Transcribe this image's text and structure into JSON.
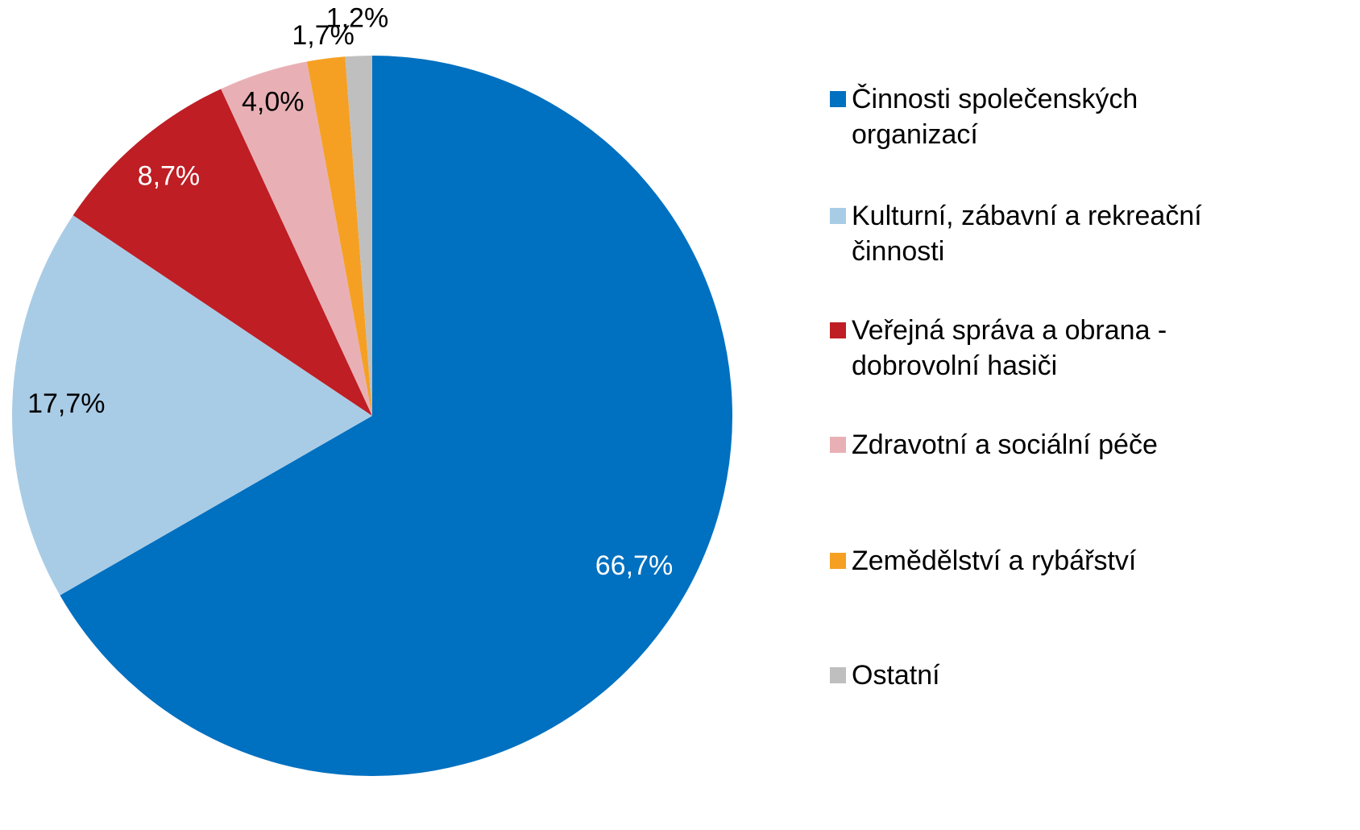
{
  "chart_data": {
    "type": "pie",
    "categories": [
      "Činnosti společenských organizací",
      "Kulturní, zábavní a rekreační činnosti",
      "Veřejná správa a obrana - dobrovolní hasiči",
      "Zdravotní a sociální péče",
      "Zemědělství a rybářství",
      "Ostatní"
    ],
    "values": [
      66.7,
      17.7,
      8.7,
      4.0,
      1.7,
      1.2
    ],
    "value_labels": [
      "66,7%",
      "17,7%",
      "8,7%",
      "4,0%",
      "1,7%",
      "1,2%"
    ],
    "colors": [
      "#0070c0",
      "#a9cce6",
      "#be1e24",
      "#e8b0b5",
      "#f5a023",
      "#bfbfbf"
    ],
    "legend": "right"
  }
}
